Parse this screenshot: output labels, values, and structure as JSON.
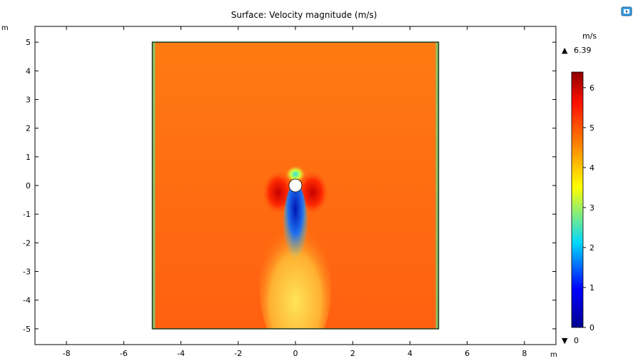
{
  "chart_data": {
    "type": "heatmap",
    "title": "Surface: Velocity magnitude (m/s)",
    "xlabel": "m",
    "ylabel": "m",
    "xlim": [
      -9.1,
      9.1
    ],
    "ylim": [
      -5.55,
      5.55
    ],
    "x_ticks": [
      "-8",
      "-6",
      "-4",
      "-2",
      "0",
      "2",
      "4",
      "6",
      "8"
    ],
    "y_ticks": [
      "5",
      "4",
      "3",
      "2",
      "1",
      "0",
      "-1",
      "-2",
      "-3",
      "-4",
      "-5"
    ],
    "domain": {
      "x": [
        -5,
        5
      ],
      "y": [
        -5,
        5
      ]
    },
    "obstacle": {
      "shape": "circle",
      "center": [
        0,
        0
      ],
      "radius": 0.25
    },
    "field": {
      "freestream_value": 5.0,
      "max_value": 6.39,
      "min_value": 0,
      "regions": [
        {
          "description": "wake behind cylinder",
          "x": [
            -0.4,
            0.4
          ],
          "y": [
            -2.5,
            -0.2
          ],
          "value": 1.0
        },
        {
          "description": "far wake",
          "x": [
            -0.8,
            0.8
          ],
          "y": [
            -5,
            -2.5
          ],
          "value": 4.0
        },
        {
          "description": "flank acceleration left",
          "x": [
            -0.7,
            -0.4
          ],
          "y": [
            -1,
            0.2
          ],
          "value": 6.3
        },
        {
          "description": "flank acceleration right",
          "x": [
            0.4,
            0.7
          ],
          "y": [
            -1,
            0.2
          ],
          "value": 6.3
        },
        {
          "description": "stagnation upstream",
          "x": [
            -0.2,
            0.2
          ],
          "y": [
            0.3,
            0.6
          ],
          "value": 2.5
        },
        {
          "description": "side walls",
          "x": [
            -5,
            5
          ],
          "y": [
            -5,
            5
          ],
          "value": 3.5
        }
      ]
    },
    "colorbar": {
      "unit": "m/s",
      "max_label": "6.39",
      "min_label": "0",
      "max_marker": "▲",
      "min_marker": "▼",
      "ticks": [
        "6",
        "5",
        "4",
        "3",
        "2",
        "1",
        "0"
      ],
      "colormap": [
        "#00008f",
        "#0000ff",
        "#00c8ff",
        "#ffff00",
        "#ff8000",
        "#ff0000",
        "#8f0000"
      ]
    },
    "colors": {
      "freestream": "#ff6a10",
      "wake": "#0a20d8",
      "far_wake": "#ffd040",
      "acceleration": "#d00000",
      "stagnation": "#40e0d0",
      "domain_border": "#1a3a1a"
    }
  },
  "toolbar": {
    "export_icon": "image-export-icon"
  }
}
